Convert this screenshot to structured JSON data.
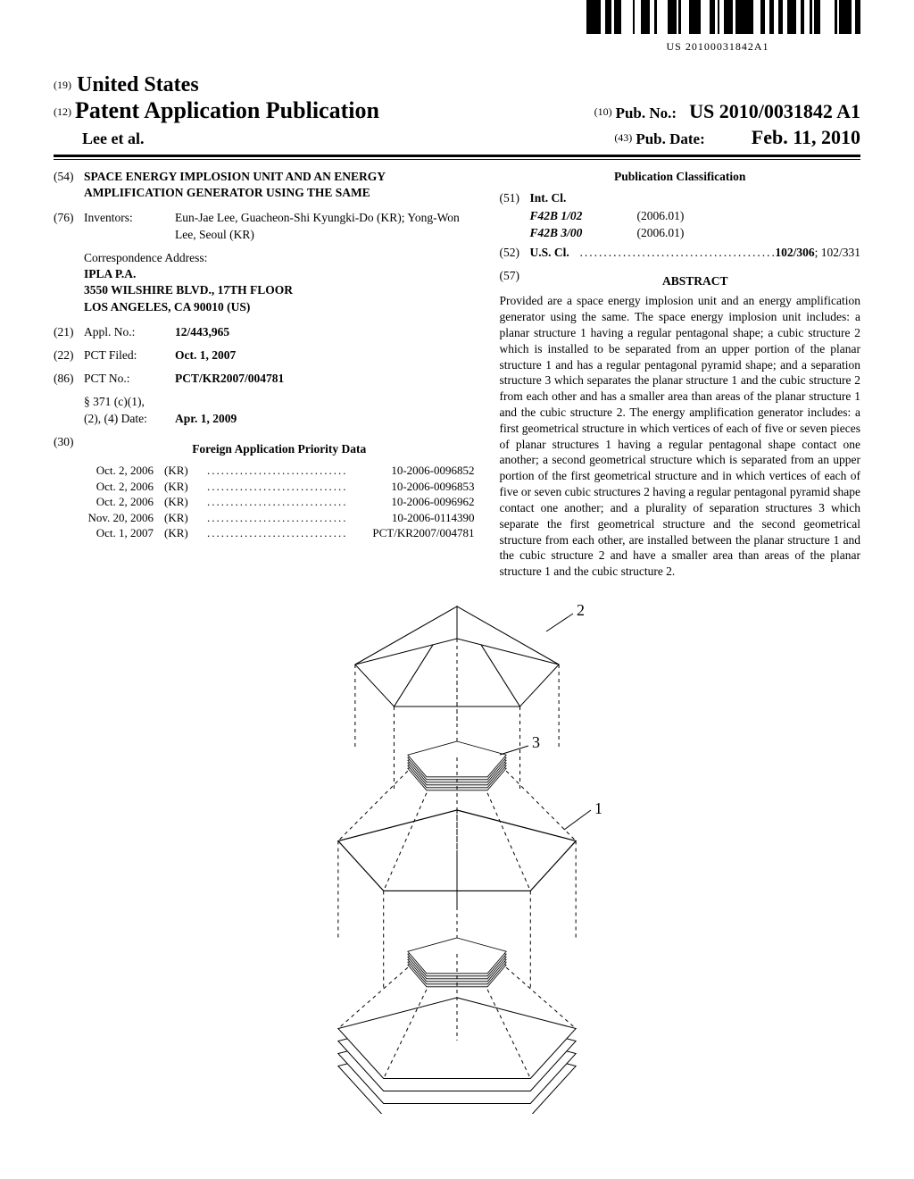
{
  "barcode": {
    "text": "US 20100031842A1",
    "pattern_seed": 31842
  },
  "header": {
    "code19": "(19)",
    "country": "United States",
    "code12": "(12)",
    "docType": "Patent Application Publication",
    "authors": "Lee et al.",
    "code10": "(10)",
    "pubNoLabel": "Pub. No.:",
    "pubNo": "US 2010/0031842 A1",
    "code43": "(43)",
    "pubDateLabel": "Pub. Date:",
    "pubDate": "Feb. 11, 2010"
  },
  "left": {
    "titleCode": "(54)",
    "title": "SPACE ENERGY IMPLOSION UNIT AND AN ENERGY AMPLIFICATION GENERATOR USING THE SAME",
    "inventorsCode": "(76)",
    "inventorsLabel": "Inventors:",
    "inventors": "Eun-Jae Lee, Guacheon-Shi Kyungki-Do (KR); Yong-Won Lee, Seoul (KR)",
    "corrLabel": "Correspondence Address:",
    "corrName": "IPLA P.A.",
    "corrStreet": "3550 WILSHIRE BLVD., 17TH FLOOR",
    "corrCity": "LOS ANGELES, CA 90010 (US)",
    "applCode": "(21)",
    "applLabel": "Appl. No.:",
    "applNo": "12/443,965",
    "pctFiledCode": "(22)",
    "pctFiledLabel": "PCT Filed:",
    "pctFiled": "Oct. 1, 2007",
    "pctNoCode": "(86)",
    "pctNoLabel": "PCT No.:",
    "pctNo": "PCT/KR2007/004781",
    "s371a": "§ 371 (c)(1),",
    "s371b": "(2), (4) Date:",
    "s371date": "Apr. 1, 2009",
    "priorityCode": "(30)",
    "priorityTitle": "Foreign Application Priority Data",
    "priorityRows": [
      {
        "date": "Oct. 2, 2006",
        "cc": "(KR)",
        "num": "10-2006-0096852"
      },
      {
        "date": "Oct. 2, 2006",
        "cc": "(KR)",
        "num": "10-2006-0096853"
      },
      {
        "date": "Oct. 2, 2006",
        "cc": "(KR)",
        "num": "10-2006-0096962"
      },
      {
        "date": "Nov. 20, 2006",
        "cc": "(KR)",
        "num": "10-2006-0114390"
      },
      {
        "date": "Oct. 1, 2007",
        "cc": "(KR)",
        "num": "PCT/KR2007/004781"
      }
    ]
  },
  "right": {
    "classifTitle": "Publication Classification",
    "intclCode": "(51)",
    "intclLabel": "Int. Cl.",
    "intcl": [
      {
        "code": "F42B 1/02",
        "ver": "(2006.01)"
      },
      {
        "code": "F42B 3/00",
        "ver": "(2006.01)"
      }
    ],
    "usclCode": "(52)",
    "usclLabel": "U.S. Cl.",
    "usclMain": "102/306",
    "usclExtra": "; 102/331",
    "abstractCode": "(57)",
    "abstractTitle": "ABSTRACT",
    "abstract": "Provided are a space energy implosion unit and an energy amplification generator using the same. The space energy implosion unit includes: a planar structure 1 having a regular pentagonal shape; a cubic structure 2 which is installed to be separated from an upper portion of the planar structure 1 and has a regular pentagonal pyramid shape; and a separation structure 3 which separates the planar structure 1 and the cubic structure 2 from each other and has a smaller area than areas of the planar structure 1 and the cubic structure 2. The energy amplification generator includes: a first geometrical structure in which vertices of each of five or seven pieces of planar structures 1 having a regular pentagonal shape contact one another; a second geometrical structure which is separated from an upper portion of the first geometrical structure and in which vertices of each of five or seven cubic structures 2 having a regular pentagonal pyramid shape contact one another; and a plurality of separation structures 3 which separate the first geometrical structure and the second geometrical structure from each other, are installed between the planar structure 1 and the cubic structure 2 and have a smaller area than areas of the planar structure 1 and the cubic structure 2."
  },
  "figure": {
    "labels": {
      "pyramid": "2",
      "separator": "3",
      "planar": "1"
    },
    "stroke": "#000000",
    "fill": "#ffffff",
    "shade": "#e8e8e8"
  }
}
